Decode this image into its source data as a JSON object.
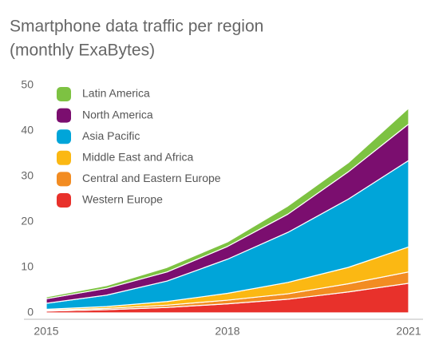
{
  "chart_data": {
    "type": "stacked-area",
    "title": "Smartphone data traffic per region",
    "subtitle": "(monthly ExaBytes)",
    "x": [
      2015,
      2016,
      2017,
      2018,
      2019,
      2020,
      2021
    ],
    "xlim": [
      2015,
      2021
    ],
    "xticks": [
      2015,
      2018,
      2021
    ],
    "ylim": [
      0,
      50
    ],
    "yticks": [
      0,
      10,
      20,
      30,
      40,
      50
    ],
    "legend": "top-left",
    "series": [
      {
        "name": "Western Europe",
        "color": "#e8312b",
        "values": [
          0.4,
          0.7,
          1.2,
          2,
          3,
          4.6,
          6.5
        ]
      },
      {
        "name": "Central and Eastern Europe",
        "color": "#f28c22",
        "values": [
          0.2,
          0.3,
          0.5,
          0.8,
          1.2,
          1.8,
          2.5
        ]
      },
      {
        "name": "Middle East and Africa",
        "color": "#fbb813",
        "values": [
          0.2,
          0.4,
          0.8,
          1.5,
          2.5,
          3.6,
          5.5
        ]
      },
      {
        "name": "Asia Pacific",
        "color": "#00a5d9",
        "values": [
          1.3,
          2.5,
          4.5,
          7.5,
          11,
          15,
          19
        ]
      },
      {
        "name": "North America",
        "color": "#7b0e6f",
        "values": [
          1,
          1.5,
          2,
          2.8,
          4,
          6,
          8
        ]
      },
      {
        "name": "Latin America",
        "color": "#7dc242",
        "values": [
          0.4,
          0.6,
          1,
          1,
          1.8,
          2,
          3.5
        ]
      }
    ]
  }
}
